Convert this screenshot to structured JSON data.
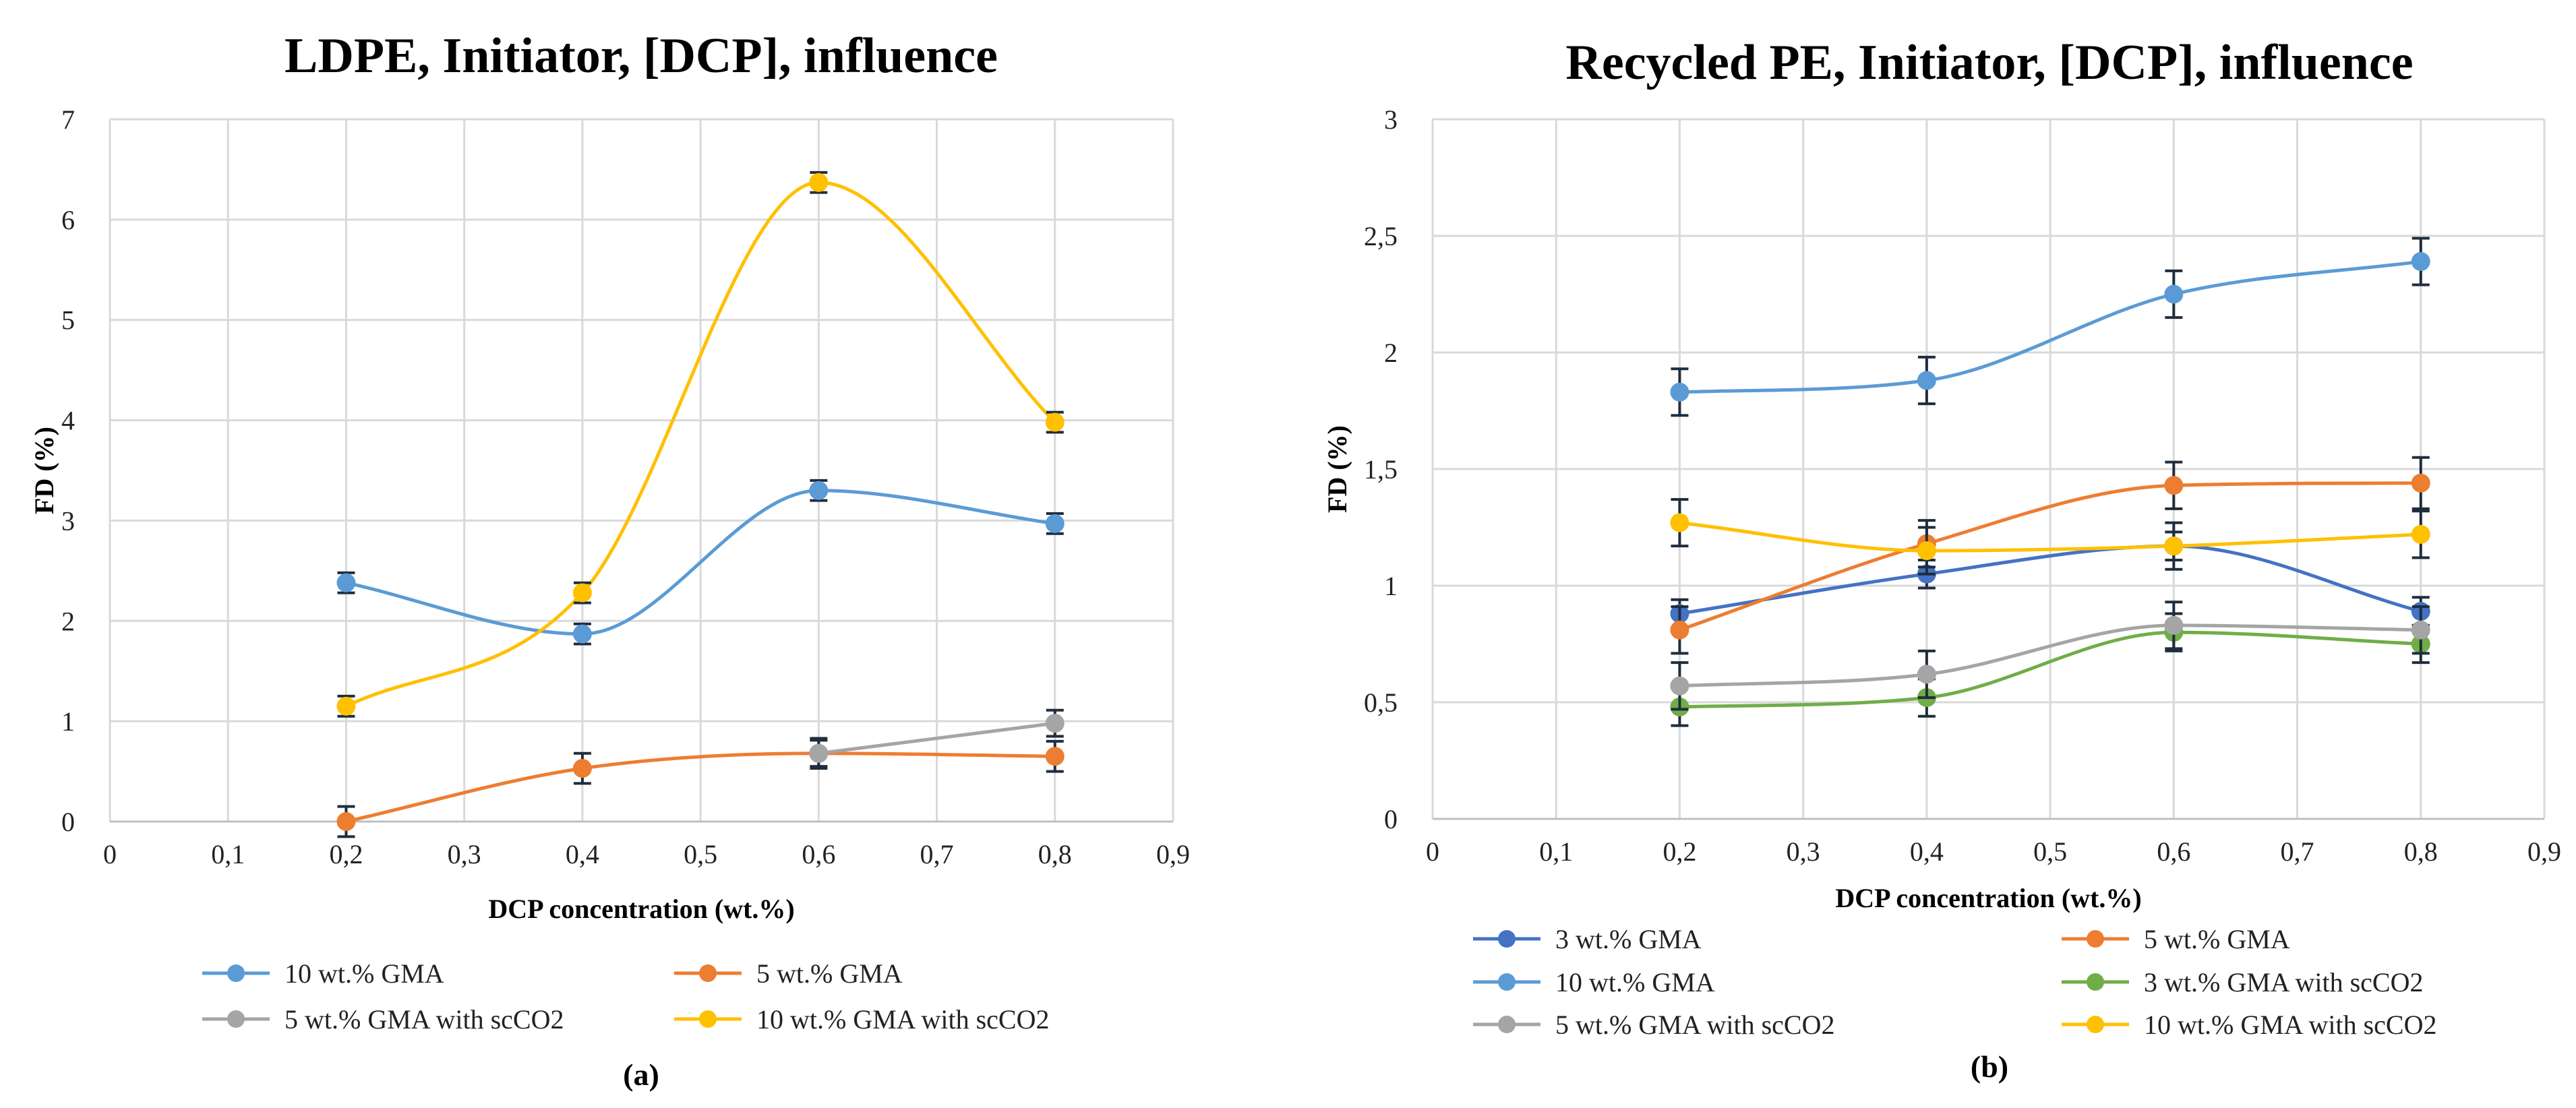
{
  "colors": {
    "blue_light": "#5b9bd5",
    "blue_dark": "#4472c4",
    "orange": "#ed7d31",
    "gray": "#a5a5a5",
    "yellow": "#ffc000",
    "green": "#70ad47",
    "error_bar": "#1f2d3d"
  },
  "chart_data": [
    {
      "type": "line",
      "smooth": true,
      "panel_label": "(a)",
      "title": "LDPE, Initiator, [DCP], influence",
      "xlabel": "DCP concentration (wt.%)",
      "ylabel": "FD (%)",
      "xlim": [
        0,
        0.9
      ],
      "ylim": [
        0,
        7
      ],
      "x_ticks": [
        "0",
        "0,1",
        "0,2",
        "0,3",
        "0,4",
        "0,5",
        "0,6",
        "0,7",
        "0,8",
        "0,9"
      ],
      "y_ticks": [
        "0",
        "1",
        "2",
        "3",
        "4",
        "5",
        "6",
        "7"
      ],
      "legend_position": "bottom",
      "series": [
        {
          "name": "10 wt.% GMA",
          "color": "#5b9bd5",
          "x": [
            0.2,
            0.4,
            0.6,
            0.8
          ],
          "values": [
            2.38,
            1.87,
            3.3,
            2.97
          ],
          "errors": [
            0.1,
            0.1,
            0.1,
            0.1
          ]
        },
        {
          "name": "5 wt.% GMA",
          "color": "#ed7d31",
          "x": [
            0.2,
            0.4,
            0.6,
            0.8
          ],
          "values": [
            0.0,
            0.53,
            0.68,
            0.65
          ],
          "errors": [
            0.15,
            0.15,
            0.15,
            0.15
          ]
        },
        {
          "name": "5 wt.% GMA with scCO2",
          "color": "#a5a5a5",
          "x": [
            0.6,
            0.8
          ],
          "values": [
            0.68,
            0.98
          ],
          "errors": [
            0.13,
            0.13
          ]
        },
        {
          "name": "10 wt.% GMA with scCO2",
          "color": "#ffc000",
          "x": [
            0.2,
            0.4,
            0.6,
            0.8
          ],
          "values": [
            1.15,
            2.28,
            6.37,
            3.98
          ],
          "errors": [
            0.1,
            0.1,
            0.1,
            0.1
          ]
        }
      ]
    },
    {
      "type": "line",
      "smooth": true,
      "panel_label": "(b)",
      "title": "Recycled PE, Initiator, [DCP], influence",
      "xlabel": "DCP concentration (wt.%)",
      "ylabel": "FD (%)",
      "xlim": [
        0,
        0.9
      ],
      "ylim": [
        0,
        3
      ],
      "x_ticks": [
        "0",
        "0,1",
        "0,2",
        "0,3",
        "0,4",
        "0,5",
        "0,6",
        "0,7",
        "0,8",
        "0,9"
      ],
      "y_ticks": [
        "0",
        "0,5",
        "1",
        "1,5",
        "2",
        "2,5",
        "3"
      ],
      "legend_position": "bottom",
      "series": [
        {
          "name": "3 wt.% GMA",
          "color": "#4472c4",
          "x": [
            0.2,
            0.4,
            0.6,
            0.8
          ],
          "values": [
            0.88,
            1.05,
            1.17,
            0.89
          ],
          "errors": [
            0.06,
            0.06,
            0.06,
            0.06
          ]
        },
        {
          "name": "5 wt.% GMA",
          "color": "#ed7d31",
          "x": [
            0.2,
            0.4,
            0.6,
            0.8
          ],
          "values": [
            0.81,
            1.18,
            1.43,
            1.44
          ],
          "errors": [
            0.1,
            0.1,
            0.1,
            0.11
          ]
        },
        {
          "name": "10 wt.% GMA",
          "color": "#5b9bd5",
          "x": [
            0.2,
            0.4,
            0.6,
            0.8
          ],
          "values": [
            1.83,
            1.88,
            2.25,
            2.39
          ],
          "errors": [
            0.1,
            0.1,
            0.1,
            0.1
          ]
        },
        {
          "name": "3 wt.% GMA with scCO2",
          "color": "#70ad47",
          "x": [
            0.2,
            0.4,
            0.6,
            0.8
          ],
          "values": [
            0.48,
            0.52,
            0.8,
            0.75
          ],
          "errors": [
            0.08,
            0.08,
            0.08,
            0.08
          ]
        },
        {
          "name": "5 wt.% GMA with scCO2",
          "color": "#a5a5a5",
          "x": [
            0.2,
            0.4,
            0.6,
            0.8
          ],
          "values": [
            0.57,
            0.62,
            0.83,
            0.81
          ],
          "errors": [
            0.1,
            0.1,
            0.1,
            0.1
          ]
        },
        {
          "name": "10 wt.% GMA with scCO2",
          "color": "#ffc000",
          "x": [
            0.2,
            0.4,
            0.6,
            0.8
          ],
          "values": [
            1.27,
            1.15,
            1.17,
            1.22
          ],
          "errors": [
            0.1,
            0.1,
            0.1,
            0.1
          ]
        }
      ]
    }
  ]
}
